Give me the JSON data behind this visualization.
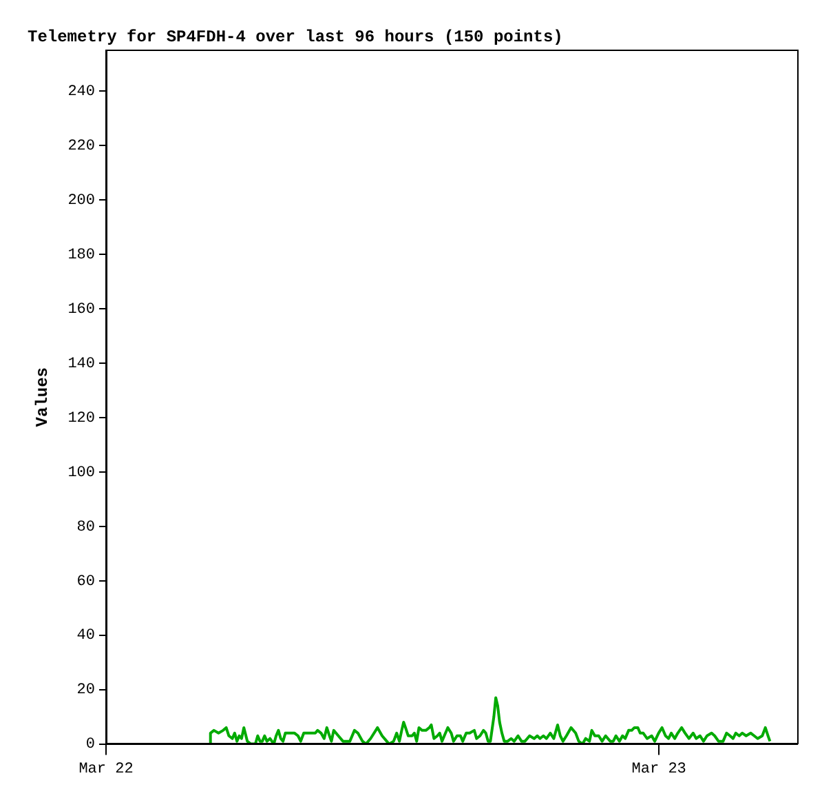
{
  "chart_data": {
    "type": "line",
    "title": "Telemetry for SP4FDH-4 over last 96 hours (150 points)",
    "ylabel": "Values",
    "grid": false,
    "legend": false,
    "marker": "none",
    "line_style": "solid",
    "xlim": [
      "--03-22T00:00",
      "--03-23T06:00"
    ],
    "xticks": [
      {
        "value": "--03-22T00:00",
        "label": "Mar 22"
      },
      {
        "value": "--03-23T00:00",
        "label": "Mar 23"
      }
    ],
    "ylim": [
      0,
      255
    ],
    "yticks": [
      0,
      20,
      40,
      60,
      80,
      100,
      120,
      140,
      160,
      180,
      200,
      220,
      240
    ],
    "series": [
      {
        "color": "#00aa00",
        "x": [
          "--03-22T04:29",
          "--03-22T04:32",
          "--03-22T04:41",
          "--03-22T04:53",
          "--03-22T05:05",
          "--03-22T05:13",
          "--03-22T05:20",
          "--03-22T05:29",
          "--03-22T05:35",
          "--03-22T05:41",
          "--03-22T05:47",
          "--03-22T05:53",
          "--03-22T05:59",
          "--03-22T06:08",
          "--03-22T06:17",
          "--03-22T06:29",
          "--03-22T06:35",
          "--03-22T06:41",
          "--03-22T06:47",
          "--03-22T06:53",
          "--03-22T06:59",
          "--03-22T07:07",
          "--03-22T07:17",
          "--03-22T07:23",
          "--03-22T07:29",
          "--03-22T07:35",
          "--03-22T07:41",
          "--03-22T07:47",
          "--03-22T07:56",
          "--03-22T08:11",
          "--03-22T08:20",
          "--03-22T08:27",
          "--03-22T08:35",
          "--03-22T08:44",
          "--03-22T08:56",
          "--03-22T09:05",
          "--03-22T09:11",
          "--03-22T09:20",
          "--03-22T09:28",
          "--03-22T09:35",
          "--03-22T09:42",
          "--03-22T09:47",
          "--03-22T09:53",
          "--03-22T10:05",
          "--03-22T10:17",
          "--03-22T10:35",
          "--03-22T10:47",
          "--03-22T10:56",
          "--03-22T11:08",
          "--03-22T11:17",
          "--03-22T11:29",
          "--03-22T11:47",
          "--03-22T11:59",
          "--03-22T12:11",
          "--03-22T12:17",
          "--03-22T12:29",
          "--03-22T12:37",
          "--03-22T12:44",
          "--03-22T12:50",
          "--03-22T12:55",
          "--03-22T13:00",
          "--03-22T13:07",
          "--03-22T13:17",
          "--03-22T13:23",
          "--03-22T13:29",
          "--03-22T13:35",
          "--03-22T13:43",
          "--03-22T13:53",
          "--03-22T14:02",
          "--03-22T14:07",
          "--03-22T14:14",
          "--03-22T14:23",
          "--03-22T14:29",
          "--03-22T14:35",
          "--03-22T14:41",
          "--03-22T14:50",
          "--03-22T14:59",
          "--03-22T15:05",
          "--03-22T15:14",
          "--03-22T15:23",
          "--03-22T15:29",
          "--03-22T15:38",
          "--03-22T15:47",
          "--03-22T15:59",
          "--03-22T16:05",
          "--03-22T16:14",
          "--03-22T16:23",
          "--03-22T16:29",
          "--03-22T16:35",
          "--03-22T16:41",
          "--03-22T16:50",
          "--03-22T16:55",
          "--03-22T17:00",
          "--03-22T17:05",
          "--03-22T17:11",
          "--03-22T17:17",
          "--03-22T17:26",
          "--03-22T17:35",
          "--03-22T17:43",
          "--03-22T17:53",
          "--03-22T18:02",
          "--03-22T18:11",
          "--03-22T18:23",
          "--03-22T18:35",
          "--03-22T18:43",
          "--03-22T18:50",
          "--03-22T18:59",
          "--03-22T19:07",
          "--03-22T19:17",
          "--03-22T19:26",
          "--03-22T19:36",
          "--03-22T19:43",
          "--03-22T19:50",
          "--03-22T19:59",
          "--03-22T20:11",
          "--03-22T20:23",
          "--03-22T20:31",
          "--03-22T20:41",
          "--03-22T20:49",
          "--03-22T20:59",
          "--03-22T21:05",
          "--03-22T21:13",
          "--03-22T21:23",
          "--03-22T21:32",
          "--03-22T21:41",
          "--03-22T21:53",
          "--03-22T22:01",
          "--03-22T22:08",
          "--03-22T22:17",
          "--03-22T22:25",
          "--03-22T22:32",
          "--03-22T22:41",
          "--03-22T22:49",
          "--03-22T22:56",
          "--03-22T23:05",
          "--03-22T23:11",
          "--03-22T23:19",
          "--03-22T23:29",
          "--03-22T23:41",
          "--03-22T23:49",
          "--03-22T23:59",
          "--03-23T00:08",
          "--03-23T00:17",
          "--03-23T00:25",
          "--03-23T00:32",
          "--03-23T00:41",
          "--03-23T00:49",
          "--03-23T00:59",
          "--03-23T01:08",
          "--03-23T01:18",
          "--03-23T01:29",
          "--03-23T01:37",
          "--03-23T01:47",
          "--03-23T01:56",
          "--03-23T02:05",
          "--03-23T02:17",
          "--03-23T02:25",
          "--03-23T02:35",
          "--03-23T02:47",
          "--03-23T02:56",
          "--03-23T03:05",
          "--03-23T03:13",
          "--03-23T03:20",
          "--03-23T03:29",
          "--03-23T03:37",
          "--03-23T03:47",
          "--03-23T03:59",
          "--03-23T04:08",
          "--03-23T04:17",
          "--03-23T04:29",
          "--03-23T04:37",
          "--03-23T04:44",
          "--03-23T04:49"
        ],
        "values": [
          0.5,
          4,
          5,
          4,
          5,
          6,
          3,
          2,
          4,
          1,
          3,
          2,
          6,
          1,
          0,
          0,
          3,
          1,
          1,
          3,
          1,
          2,
          0,
          3,
          5,
          2,
          1,
          4,
          4,
          4,
          3,
          1,
          4,
          4,
          4,
          4,
          5,
          4,
          2,
          6,
          3,
          1,
          5,
          3,
          1,
          1,
          5,
          4,
          1,
          0,
          2,
          6,
          3,
          1,
          0,
          1,
          4,
          1,
          5,
          8,
          6,
          3,
          3,
          4,
          1,
          6,
          5,
          5,
          6,
          7,
          2,
          3,
          4,
          1,
          3,
          6,
          4,
          1,
          3,
          3,
          1,
          4,
          4,
          5,
          2,
          3,
          5,
          4,
          1,
          1,
          10,
          17,
          14,
          8,
          4,
          1,
          1,
          2,
          1,
          3,
          1,
          1,
          3,
          2,
          3,
          2,
          3,
          2,
          4,
          2,
          7,
          3,
          1,
          3,
          6,
          4,
          1,
          0,
          2,
          1,
          5,
          3,
          3,
          1,
          3,
          1,
          1,
          3,
          1,
          3,
          2,
          5,
          5,
          6,
          6,
          4,
          4,
          2,
          3,
          1,
          4,
          6,
          3,
          2,
          4,
          2,
          4,
          6,
          4,
          2,
          4,
          2,
          3,
          1,
          3,
          4,
          3,
          1,
          1,
          4,
          3,
          2,
          4,
          3,
          4,
          3,
          4,
          3,
          2,
          3,
          6,
          3,
          1
        ]
      }
    ]
  }
}
